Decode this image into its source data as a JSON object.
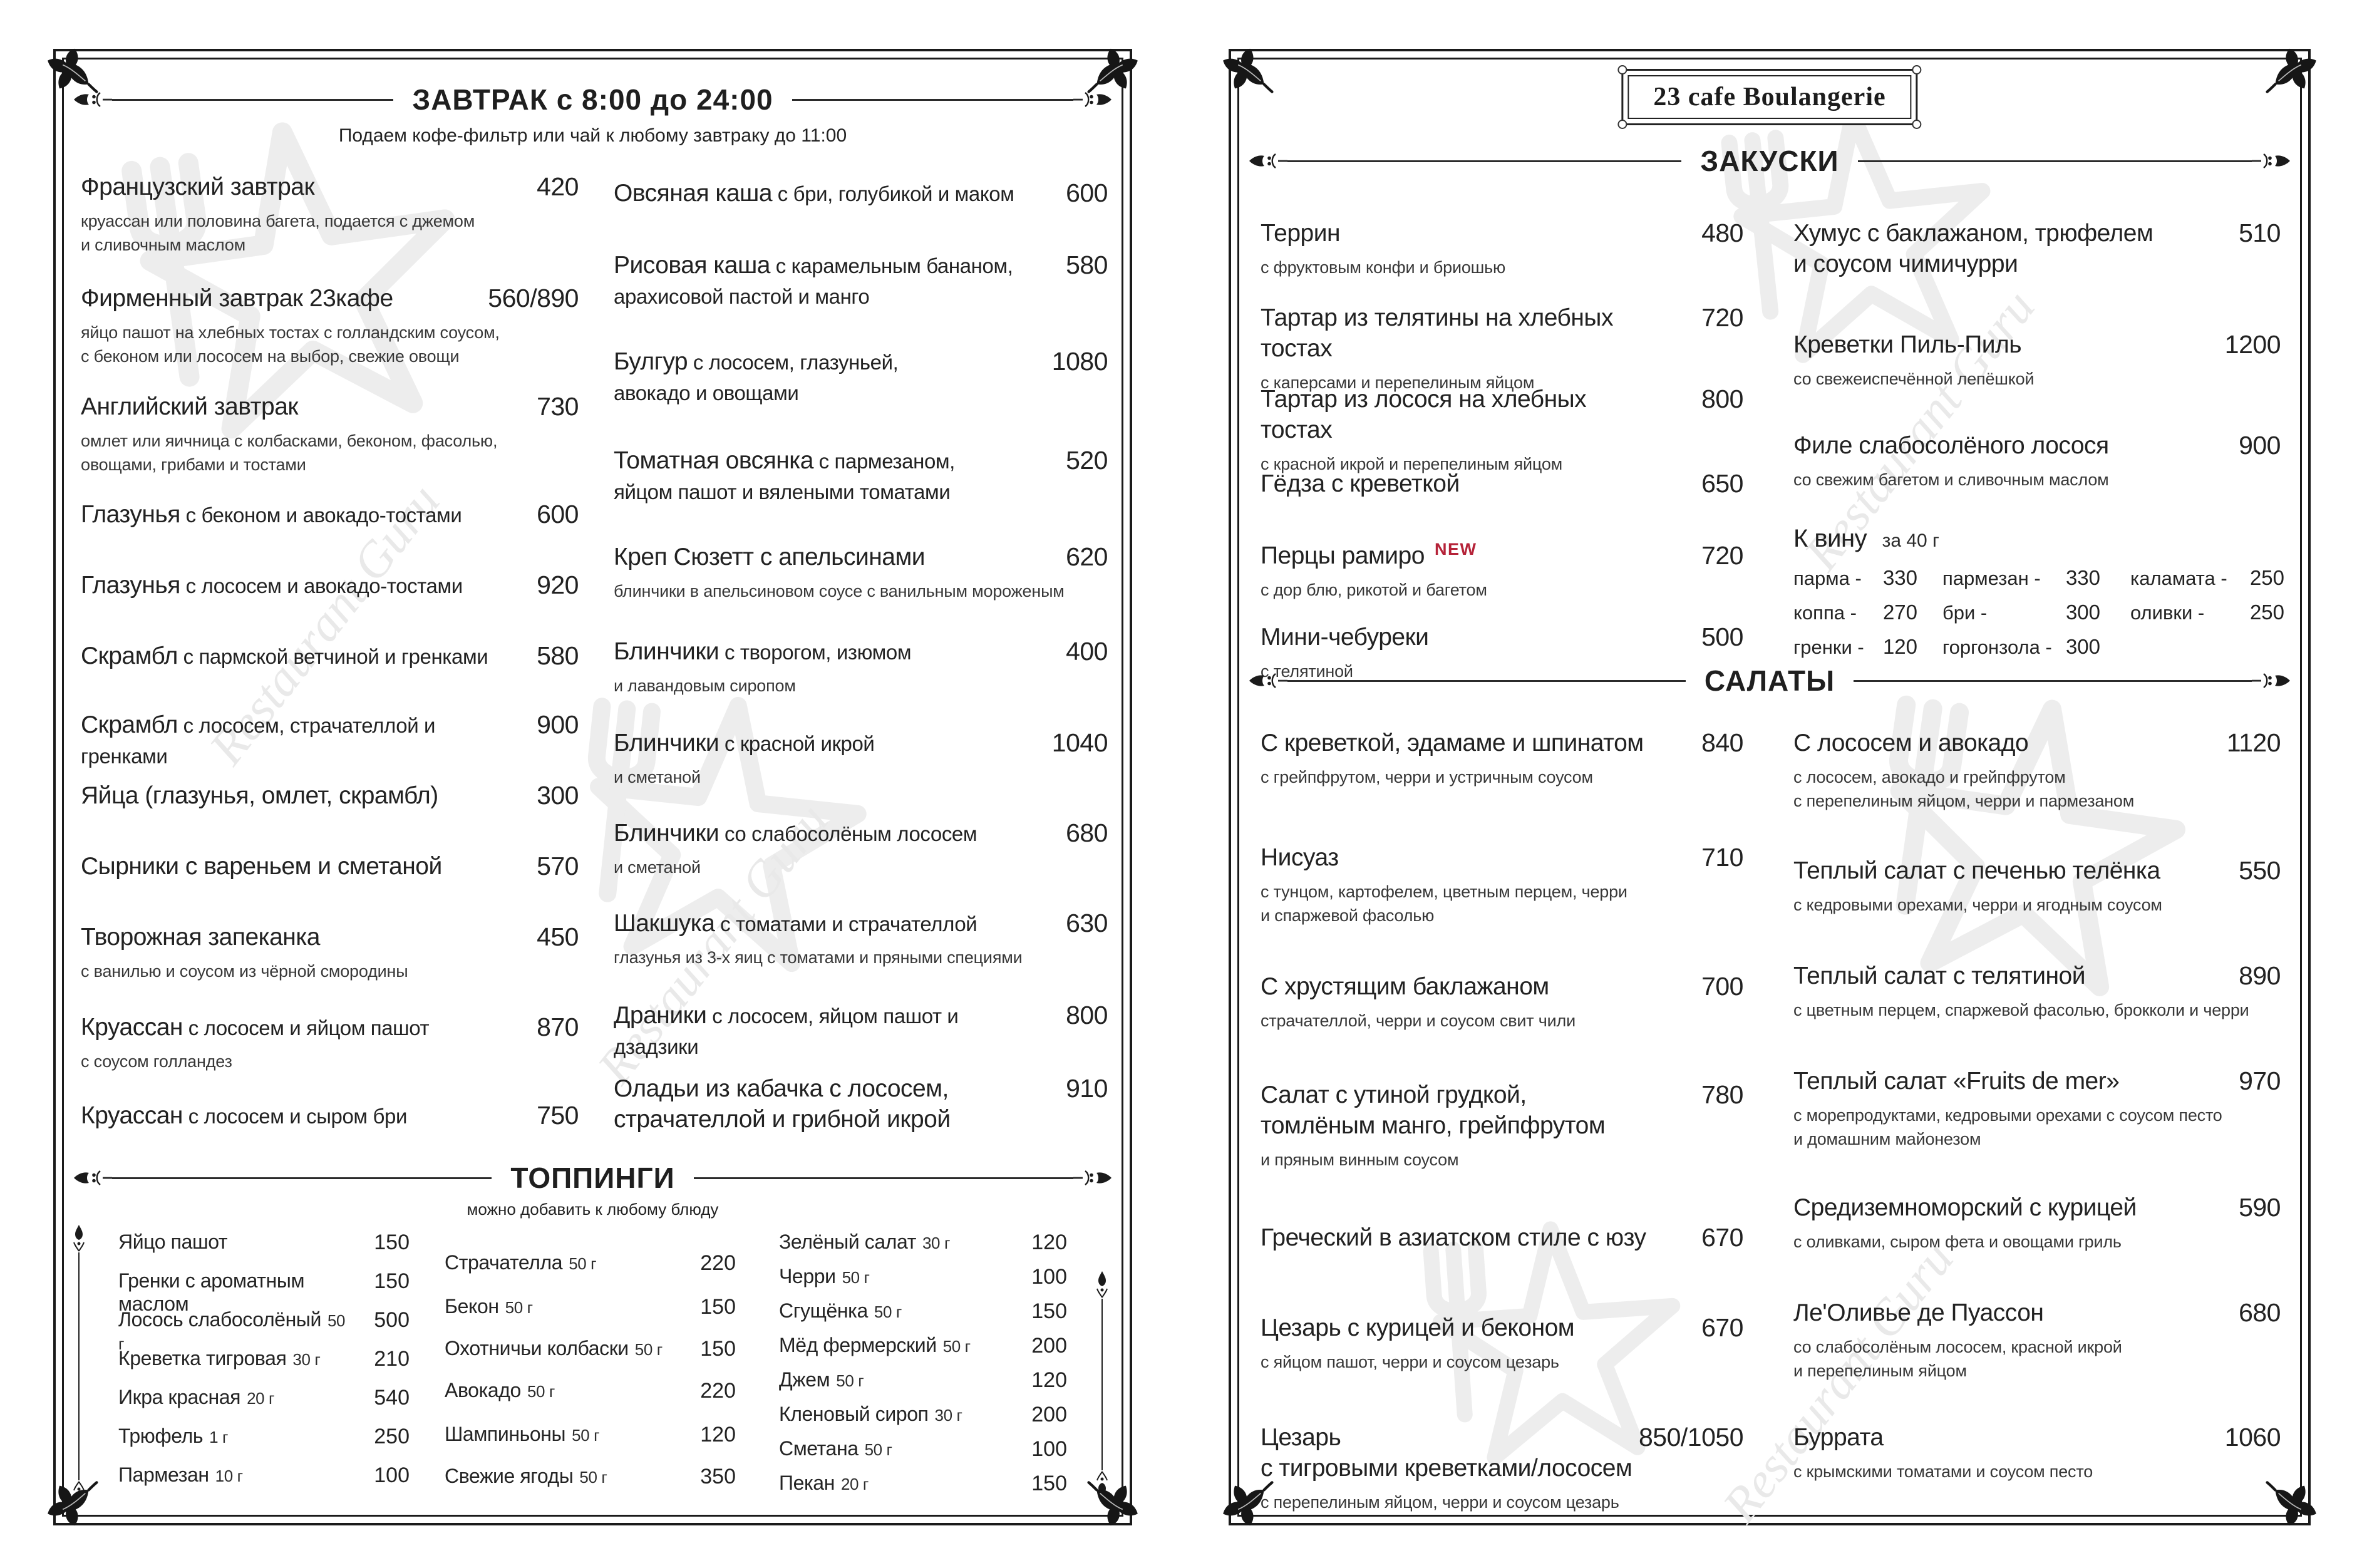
{
  "colors": {
    "ink": "#1f1f1f",
    "description": "#383838",
    "new_badge": "#b52238",
    "watermark": "#e9e9e9"
  },
  "watermark_text": "Restaurant Guru",
  "left_page": {
    "header": {
      "title": "ЗАВТРАК с 8:00 до 24:00",
      "subtitle": "Подаем кофе-фильтр или чай к любому завтраку до 11:00"
    },
    "col_left": [
      {
        "lead": "Французский завтрак",
        "price": "420",
        "desc": "круассан или половина багета, подается с джемом\nи сливочным маслом"
      },
      {
        "lead": "Фирменный завтрак 23кафе",
        "price": "560/890",
        "desc": "яйцо пашот на хлебных тостах с голландским соусом,\nс беконом  или лососем  на выбор, свежие овощи"
      },
      {
        "lead": "Английский завтрак",
        "price": "730",
        "desc": "омлет или яичница с колбасками, беконом, фасолью,\nовощами, грибами и тостами"
      },
      {
        "lead": "Глазунья",
        "rest": "с беконом и авокадо-тостами",
        "price": "600"
      },
      {
        "lead": "Глазунья",
        "rest": "с лососем и авокадо-тостами",
        "price": "920"
      },
      {
        "lead": "Скрамбл",
        "rest": "с пармской ветчиной и гренками",
        "price": "580"
      },
      {
        "lead": "Скрамбл",
        "rest": "с лососем, страчателлой и гренками",
        "price": "900"
      },
      {
        "lead": "Яйца (глазунья, омлет, скрамбл)",
        "price": "300"
      },
      {
        "lead": "Сырники с вареньем и сметаной",
        "price": "570"
      },
      {
        "lead": "Творожная запеканка",
        "price": "450",
        "desc": "с ванилью и соусом из чёрной смородины"
      },
      {
        "lead": "Круассан",
        "rest": "с лососем и яйцом пашот",
        "price": "870",
        "desc": "с соусом голландез"
      },
      {
        "lead": "Круассан",
        "rest": "с лососем и сыром бри",
        "price": "750"
      }
    ],
    "col_right": [
      {
        "lead": "Овсяная каша",
        "rest": "с бри, голубикой и маком",
        "price": "600"
      },
      {
        "lead": "Рисовая каша",
        "rest": "с карамельным бананом,\nарахисовой пастой и манго",
        "price": "580"
      },
      {
        "lead": "Булгур",
        "rest": "с лососем, глазуньей,\nавокадо и овощами",
        "price": "1080"
      },
      {
        "lead": "Томатная овсянка",
        "rest": "с пармезаном,\nяйцом пашот и вялеными томатами",
        "price": "520"
      },
      {
        "lead": "Креп Сюзетт с апельсинами",
        "price": "620",
        "desc": "блинчики в апельсиновом соусе с ванильным мороженым"
      },
      {
        "lead": "Блинчики",
        "rest": "с творогом, изюмом",
        "price": "400",
        "desc": "и лавандовым сиропом"
      },
      {
        "lead": "Блинчики",
        "rest": "с красной икрой",
        "price": "1040",
        "desc": "и сметаной"
      },
      {
        "lead": "Блинчики",
        "rest": "со слабосолёным лососем",
        "price": "680",
        "desc": "и сметаной"
      },
      {
        "lead": "Шакшука",
        "rest": "с томатами и страчателлой",
        "price": "630",
        "desc": "глазунья из 3-х яиц с томатами и пряными специями"
      },
      {
        "lead": "Драники",
        "rest": "с лососем, яйцом пашот  и дзадзики",
        "price": "800"
      },
      {
        "lead": "Оладьи из кабачка с лососем,\nстрачателлой и грибной икрой",
        "price": "910"
      }
    ],
    "toppings": {
      "title": "ТОППИНГИ",
      "subtitle": "можно добавить к любому блюду",
      "col1": [
        {
          "n": "Яйцо пашот",
          "p": "150"
        },
        {
          "n": "Гренки с ароматным маслом",
          "p": "150"
        },
        {
          "n": "Лосось слабосолёный",
          "s": "50 г",
          "p": "500"
        },
        {
          "n": "Креветка тигровая",
          "s": "30 г",
          "p": "210"
        },
        {
          "n": "Икра красная",
          "s": "20 г",
          "p": "540"
        },
        {
          "n": "Трюфель",
          "s": "1 г",
          "p": "250"
        },
        {
          "n": "Пармезан",
          "s": "10 г",
          "p": "100"
        }
      ],
      "col2": [
        {
          "n": "Страчателла",
          "s": "50 г",
          "p": "220"
        },
        {
          "n": "Бекон",
          "s": "50 г",
          "p": "150"
        },
        {
          "n": "Охотничьи колбаски",
          "s": "50 г",
          "p": "150"
        },
        {
          "n": "Авокадо",
          "s": "50 г",
          "p": "220"
        },
        {
          "n": "Шампиньоны",
          "s": "50 г",
          "p": "120"
        },
        {
          "n": "Свежие ягоды",
          "s": "50 г",
          "p": "350"
        }
      ],
      "col3": [
        {
          "n": "Зелёный салат",
          "s": "30 г",
          "p": "120"
        },
        {
          "n": "Черри",
          "s": "50 г",
          "p": "100"
        },
        {
          "n": "Сгущёнка",
          "s": "50 г",
          "p": "150"
        },
        {
          "n": "Мёд фермерский",
          "s": "50 г",
          "p": "200"
        },
        {
          "n": "Джем",
          "s": "50 г",
          "p": "120"
        },
        {
          "n": "Кленовый сироп",
          "s": "30 г",
          "p": "200"
        },
        {
          "n": "Сметана",
          "s": "50 г",
          "p": "100"
        },
        {
          "n": "Пекан",
          "s": "20 г",
          "p": "150"
        }
      ]
    }
  },
  "right_page": {
    "brand": "23 cafe Boulangerie",
    "zakuski": {
      "title": "ЗАКУСКИ",
      "col_left": [
        {
          "lead": "Террин",
          "price": "480",
          "desc": "с фруктовым конфи и бриошью"
        },
        {
          "lead": "Тартар из телятины на хлебных тостах",
          "price": "720",
          "desc": "с каперсами и перепелиным яйцом"
        },
        {
          "lead": "Тартар из лосося на хлебных тостах",
          "price": "800",
          "desc": "с красной икрой и перепелиным яйцом"
        },
        {
          "lead": "Гёдза с креветкой",
          "price": "650"
        },
        {
          "lead": "Перцы рамиро",
          "badge": "NEW",
          "price": "720",
          "desc": "с дор блю, рикотой и багетом"
        },
        {
          "lead": "Мини-чебуреки",
          "price": "500",
          "desc": "с телятиной"
        }
      ],
      "col_right": [
        {
          "lead": "Хумус с баклажаном, трюфелем\nи соусом чимичурри",
          "price": "510"
        },
        {
          "lead": "Креветки Пиль-Пиль",
          "price": "1200",
          "desc": "со свежеиспечённой лепёшкой"
        },
        {
          "lead": "Филе слабосолёного лосося",
          "price": "900",
          "desc": "со свежим багетом и сливочным маслом"
        }
      ],
      "wine": {
        "title": "К вину",
        "note": "за 40 г",
        "rows": [
          [
            {
              "n": "парма",
              "p": "330"
            },
            {
              "n": "пармезан",
              "p": "330"
            },
            {
              "n": "каламата",
              "p": "250"
            }
          ],
          [
            {
              "n": "коппа",
              "p": "270"
            },
            {
              "n": "бри",
              "p": "300"
            },
            {
              "n": "оливки",
              "p": "250"
            }
          ],
          [
            {
              "n": "гренки",
              "p": "120"
            },
            {
              "n": "горгонзола",
              "p": "300"
            },
            null
          ]
        ]
      }
    },
    "salaty": {
      "title": "САЛАТЫ",
      "col_left": [
        {
          "lead": "С креветкой, эдамаме и шпинатом",
          "price": "840",
          "desc": "с грейпфрутом, черри и устричным соусом"
        },
        {
          "lead": "Нисуаз",
          "price": "710",
          "desc": "с тунцом, картофелем, цветным перцем, черри\nи спаржевой фасолью"
        },
        {
          "lead": "С хрустящим баклажаном",
          "price": "700",
          "desc": "страчателлой, черри и соусом свит чили"
        },
        {
          "lead": "Салат с утиной грудкой,\nтомлёным манго, грейпфрутом",
          "price": "780",
          "desc": " и пряным винным соусом"
        },
        {
          "lead": "Греческий в азиатском стиле с юзу",
          "price": "670"
        },
        {
          "lead": "Цезарь с курицей и беконом",
          "price": "670",
          "desc": "с яйцом пашот, черри и соусом цезарь"
        },
        {
          "lead": "Цезарь\nс тигровыми креветками/лососем",
          "price": "850/1050",
          "desc": "с перепелиным яйцом, черри и соусом цезарь"
        }
      ],
      "col_right": [
        {
          "lead": "С лососем и авокадо",
          "price": "1120",
          "desc": "с лососем, авокадо и грейпфрутом\nс перепелиным яйцом, черри и пармезаном"
        },
        {
          "lead": "Теплый салат с печенью телёнка",
          "price": "550",
          "desc": "с кедровыми орехами, черри и ягодным соусом"
        },
        {
          "lead": "Теплый салат с телятиной",
          "price": "890",
          "desc": "с цветным перцем, спаржевой фасолью, брокколи и черри"
        },
        {
          "lead": "Теплый салат «Fruits de mer»",
          "price": "970",
          "desc": "с морепродуктами, кедровыми орехами с соусом песто\nи домашним майонезом"
        },
        {
          "lead": "Средиземноморский с курицей",
          "price": "590",
          "desc": "с оливками, сыром фета и овощами гриль"
        },
        {
          "lead": "Ле'Оливье де Пуассон",
          "price": "680",
          "desc": "со слабосолёным лососем, красной икрой\nи перепелиным яйцом"
        },
        {
          "lead": "Буррата",
          "price": "1060",
          "desc": "с крымскими томатами и соусом песто"
        }
      ]
    }
  }
}
